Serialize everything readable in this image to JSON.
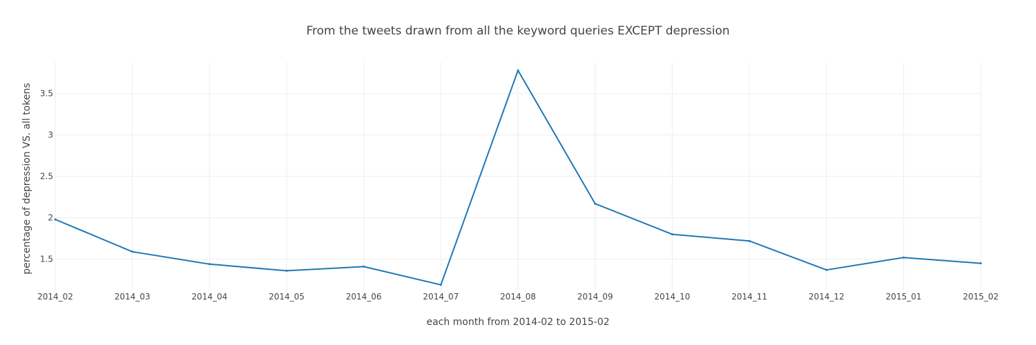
{
  "chart_data": {
    "type": "line",
    "title": "From the tweets drawn from all the keyword queries EXCEPT depression",
    "xlabel": "each month from 2014-02 to 2015-02",
    "ylabel": "percentage of depression VS. all tokens",
    "categories": [
      "2014_02",
      "2014_03",
      "2014_04",
      "2014_05",
      "2014_06",
      "2014_07",
      "2014_08",
      "2014_09",
      "2014_10",
      "2014_11",
      "2014_12",
      "2015_01",
      "2015_02"
    ],
    "series": [
      {
        "values": [
          1.98,
          1.59,
          1.44,
          1.36,
          1.41,
          1.19,
          3.78,
          2.17,
          1.8,
          1.72,
          1.37,
          1.52,
          1.45
        ]
      }
    ],
    "yticks": [
      "1.5",
      "2",
      "2.5",
      "3",
      "3.5"
    ],
    "ylim": [
      1.13,
      3.88
    ],
    "grid": true,
    "line_color": "#1f77b4"
  }
}
